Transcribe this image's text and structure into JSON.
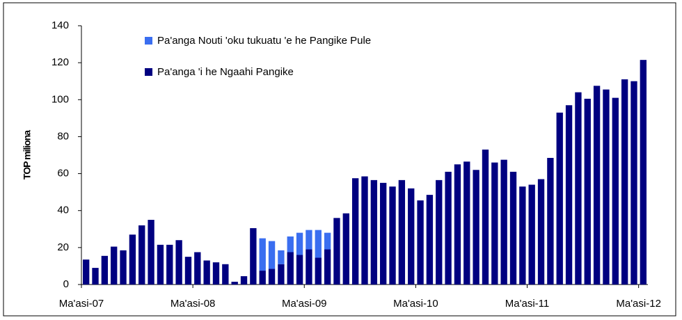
{
  "chart_data": {
    "type": "bar",
    "y_label": "TOP miliona",
    "categories": [
      "Ma'asi-07",
      null,
      null,
      null,
      null,
      null,
      null,
      null,
      null,
      null,
      null,
      null,
      "Ma'asi-08",
      null,
      null,
      null,
      null,
      null,
      null,
      null,
      null,
      null,
      null,
      null,
      "Ma'asi-09",
      null,
      null,
      null,
      null,
      null,
      null,
      null,
      null,
      null,
      null,
      null,
      "Ma'asi-10",
      null,
      null,
      null,
      null,
      null,
      null,
      null,
      null,
      null,
      null,
      null,
      "Ma'asi-11",
      null,
      null,
      null,
      null,
      null,
      null,
      null,
      null,
      null,
      null,
      null,
      "Ma'asi-12"
    ],
    "series": [
      {
        "name": "Pa'anga 'i he Ngaahi Pangike",
        "color": "#000080",
        "values": [
          13.5,
          9,
          15.5,
          20.5,
          18.5,
          27,
          32,
          35,
          21.5,
          21.5,
          24,
          15,
          17.5,
          13,
          12,
          11,
          1.5,
          4.5,
          30.5,
          7.5,
          8.5,
          11,
          17.5,
          16,
          19,
          14.5,
          19,
          36,
          38.5,
          57.5,
          58.5,
          56.5,
          55,
          53,
          56.5,
          52,
          45.5,
          48.5,
          56.5,
          61,
          65,
          66.5,
          62,
          73,
          66,
          67.5,
          61,
          53,
          54,
          57,
          68.5,
          93,
          97,
          104,
          100.5,
          107.5,
          105.5,
          101,
          111,
          110,
          121.5
        ]
      },
      {
        "name": "Pa'anga Nouti 'oku tukuatu 'e he Pangike Pule",
        "color": "#3a6ef0",
        "values": [
          null,
          null,
          null,
          null,
          null,
          null,
          null,
          null,
          null,
          null,
          null,
          null,
          null,
          null,
          null,
          null,
          null,
          null,
          null,
          17.5,
          15,
          7.5,
          8.5,
          12,
          10.5,
          15,
          9,
          null,
          null,
          null,
          null,
          null,
          null,
          null,
          null,
          null,
          null,
          null,
          null,
          null,
          null,
          null,
          null,
          null,
          null,
          null,
          null,
          null,
          null,
          null,
          null,
          null,
          null,
          null,
          null,
          null,
          null,
          null,
          null,
          null,
          null
        ]
      }
    ],
    "stacked": true,
    "ylim": [
      0,
      140
    ],
    "yticks": [
      0,
      20,
      40,
      60,
      80,
      100,
      120,
      140
    ]
  }
}
